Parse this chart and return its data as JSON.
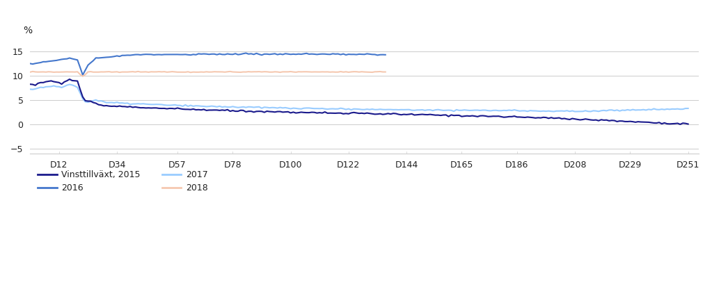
{
  "title": "",
  "ylabel": "%",
  "background_color": "#ffffff",
  "plot_bg_color": "#ffffff",
  "text_color": "#222222",
  "grid_color": "#cccccc",
  "ylim": [
    -6,
    17
  ],
  "yticks": [
    -5,
    0,
    5,
    10,
    15
  ],
  "xtick_labels": [
    "D12",
    "D34",
    "D57",
    "D78",
    "D100",
    "D122",
    "D144",
    "D165",
    "D186",
    "D208",
    "D229",
    "D251"
  ],
  "xtick_positions": [
    12,
    34,
    57,
    78,
    100,
    122,
    144,
    165,
    186,
    208,
    229,
    251
  ],
  "legend": [
    {
      "label": "Vinsttillväxt, 2015",
      "color": "#1a1a8c",
      "lw": 1.5
    },
    {
      "label": "2017",
      "color": "#99ccff",
      "lw": 1.5
    },
    {
      "label": "2016",
      "color": "#4477cc",
      "lw": 1.5
    },
    {
      "label": "2018",
      "color": "#f5c8b0",
      "lw": 1.5
    }
  ],
  "n_points": 251,
  "s3_end": 136,
  "s4_end": 136
}
